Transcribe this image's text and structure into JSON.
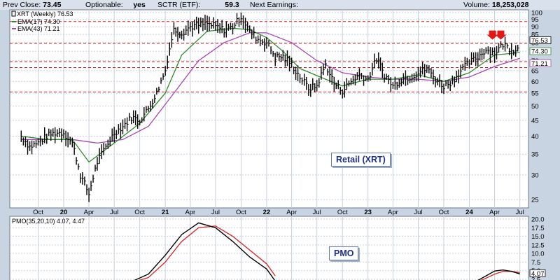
{
  "header": {
    "prev_close_label": "Prev Close:",
    "prev_close_value": "73.45",
    "optionable_label": "Optionable:",
    "optionable_value": "yes",
    "sctr_label": "SCTR (ETF):",
    "sctr_value": "59.3",
    "next_earnings_label": "Next Earnings:",
    "next_earnings_value": "",
    "volume_label": "Volume:",
    "volume_value": "18,253,028"
  },
  "legend": {
    "symbol": "XRT (Weekly) 76.53",
    "ema17": "EMA(17) 74.30",
    "ema43": "EMA(43) 71.21",
    "pmo": "PMO(35,20,10) 4.07, 4.47",
    "price_label_last": "76.53",
    "price_label_ema17": "74.30",
    "price_label_ema43": "71.21",
    "pmo_label_last": "4.07"
  },
  "annotations": {
    "retail_box": "Retail (XRT)",
    "pmo_box": "PMO"
  },
  "colors": {
    "price": "#000000",
    "ema17": "#2e8b2e",
    "ema43": "#a646b4",
    "pmo": "#000000",
    "pmo_signal": "#d23232",
    "resistance": "#d22020",
    "arrow": "#e01818",
    "panel_bg": "#ffffff",
    "grid": "#c8d0da"
  },
  "chart_data": [
    {
      "type": "line",
      "title": "Retail (XRT)",
      "y_scale": "log",
      "ylim": [
        23.5,
        102
      ],
      "yticks": [
        25,
        30,
        35,
        40,
        45,
        50,
        55,
        60,
        65,
        70,
        75,
        80,
        85,
        90,
        95,
        100
      ],
      "x_ticks": [
        "Oct",
        "20",
        "Apr",
        "Jul",
        "Oct",
        "21",
        "Apr",
        "Jul",
        "Oct",
        "22",
        "Apr",
        "Jul",
        "Oct",
        "23",
        "Apr",
        "Jul",
        "Oct",
        "24",
        "Apr",
        "Jul"
      ],
      "grid": true,
      "horizontal_lines": [
        93.5,
        79.5,
        69.5,
        66.5,
        55.5
      ],
      "arrows_at_price": [
        80.5,
        80.5
      ],
      "series": [
        {
          "name": "XRT (Weekly)",
          "x": [
            "2019-08",
            "2019-09",
            "2019-10",
            "2019-11",
            "2019-12",
            "2020-01",
            "2020-02",
            "2020-03",
            "2020-04",
            "2020-05",
            "2020-06",
            "2020-07",
            "2020-08",
            "2020-09",
            "2020-10",
            "2020-11",
            "2020-12",
            "2021-01",
            "2021-02",
            "2021-03",
            "2021-04",
            "2021-05",
            "2021-06",
            "2021-07",
            "2021-08",
            "2021-09",
            "2021-10",
            "2021-11",
            "2021-12",
            "2022-01",
            "2022-02",
            "2022-03",
            "2022-04",
            "2022-05",
            "2022-06",
            "2022-07",
            "2022-08",
            "2022-09",
            "2022-10",
            "2022-11",
            "2022-12",
            "2023-01",
            "2023-02",
            "2023-03",
            "2023-04",
            "2023-05",
            "2023-06",
            "2023-07",
            "2023-08",
            "2023-09",
            "2023-10",
            "2023-11",
            "2023-12",
            "2024-01",
            "2024-02",
            "2024-03",
            "2024-04",
            "2024-05",
            "2024-06",
            "2024-07"
          ],
          "values": [
            40,
            37,
            38,
            40,
            41,
            41,
            38,
            30,
            26,
            33,
            37,
            41,
            43,
            46,
            45,
            49,
            55,
            65,
            88,
            86,
            90,
            91,
            92,
            90,
            88,
            90,
            97,
            87,
            82,
            80,
            72,
            72,
            68,
            62,
            57,
            58,
            68,
            59,
            56,
            60,
            63,
            61,
            71,
            63,
            58,
            61,
            62,
            64,
            66,
            61,
            58,
            60,
            65,
            69,
            72,
            76,
            74,
            79,
            76,
            76.53
          ]
        },
        {
          "name": "EMA(17)",
          "x": [
            "2019-08",
            "2019-11",
            "2020-02",
            "2020-04",
            "2020-07",
            "2020-10",
            "2021-01",
            "2021-03",
            "2021-06",
            "2021-09",
            "2021-11",
            "2022-01",
            "2022-03",
            "2022-05",
            "2022-08",
            "2022-10",
            "2023-01",
            "2023-04",
            "2023-07",
            "2023-10",
            "2024-01",
            "2024-04",
            "2024-07"
          ],
          "values": [
            40,
            39,
            39,
            33,
            38,
            44,
            55,
            73,
            87,
            89,
            88,
            83,
            75,
            66,
            61,
            58,
            61,
            61,
            63,
            60,
            64,
            73,
            74.3
          ]
        },
        {
          "name": "EMA(43)",
          "x": [
            "2019-08",
            "2019-11",
            "2020-02",
            "2020-05",
            "2020-08",
            "2020-11",
            "2021-02",
            "2021-05",
            "2021-08",
            "2021-11",
            "2022-01",
            "2022-04",
            "2022-07",
            "2022-10",
            "2023-01",
            "2023-04",
            "2023-07",
            "2023-10",
            "2024-01",
            "2024-04",
            "2024-07"
          ],
          "values": [
            39,
            39,
            39,
            38,
            39,
            43,
            55,
            70,
            80,
            86,
            86,
            80,
            70,
            64,
            62,
            61,
            61,
            60,
            62,
            67,
            71.21
          ]
        }
      ]
    },
    {
      "type": "line",
      "title": "PMO",
      "ylim": [
        2.5,
        20.0
      ],
      "yticks": [
        2.5,
        5.0,
        7.5,
        10.0,
        12.5,
        15.0,
        17.5,
        20.0
      ],
      "grid": true,
      "series": [
        {
          "name": "PMO(35,20,10)",
          "x": [
            "2020-09",
            "2020-11",
            "2021-01",
            "2021-03",
            "2021-05",
            "2021-07",
            "2021-09",
            "2021-11",
            "2022-01",
            "2022-02",
            "2024-02",
            "2024-03",
            "2024-04",
            "2024-05",
            "2024-06",
            "2024-07"
          ],
          "values": [
            1.8,
            4.0,
            9.5,
            15.5,
            18.9,
            17.5,
            13.5,
            9.0,
            5.5,
            2.0,
            2.2,
            3.5,
            4.9,
            5.2,
            4.8,
            4.07
          ]
        },
        {
          "name": "signal",
          "x": [
            "2020-09",
            "2020-11",
            "2021-01",
            "2021-03",
            "2021-05",
            "2021-07",
            "2021-09",
            "2021-11",
            "2022-01",
            "2022-02",
            "2024-02",
            "2024-03",
            "2024-04",
            "2024-05",
            "2024-06",
            "2024-07"
          ],
          "values": [
            1.5,
            3.0,
            7.5,
            13.5,
            17.5,
            18.0,
            15.0,
            11.0,
            7.0,
            3.5,
            1.8,
            2.8,
            4.0,
            4.8,
            4.8,
            4.47
          ]
        }
      ]
    }
  ]
}
